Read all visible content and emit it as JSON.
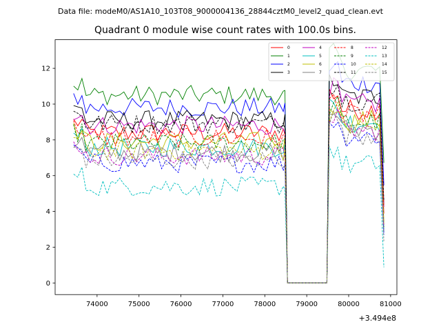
{
  "chart_data": {
    "type": "line",
    "suptitle": "Data file: modeM0/AS1A10_103T08_9000004136_28844cztM0_level2_quad_clean.evt",
    "title": "Quadrant 0 module wise count rates with 100.0s bins.",
    "xlabel": "",
    "ylabel": "",
    "offset_text": "+3.494e8",
    "x_offset": 349400000,
    "xlim": [
      73000,
      81150
    ],
    "ylim": [
      -0.65,
      13.6
    ],
    "xticks": [
      74000,
      75000,
      76000,
      77000,
      78000,
      79000,
      80000,
      81000
    ],
    "yticks": [
      0,
      2,
      4,
      6,
      8,
      10,
      12
    ],
    "legend_position": "top-right",
    "legend_columns": 4,
    "x_start": 73440,
    "bin_size": 100,
    "gap": {
      "down_from": 78540,
      "up_to": 79480
    },
    "x_end": 80840,
    "series": [
      {
        "name": "0",
        "color": "#ff0000",
        "dash": "solid",
        "pre_level": 8.4,
        "post_level": 9.7
      },
      {
        "name": "1",
        "color": "#008000",
        "dash": "solid",
        "pre_level": 10.5,
        "post_level": 11.9
      },
      {
        "name": "2",
        "color": "#0000ff",
        "dash": "solid",
        "pre_level": 9.8,
        "post_level": 11.2
      },
      {
        "name": "3",
        "color": "#000000",
        "dash": "solid",
        "pre_level": 9.1,
        "post_level": 10.4
      },
      {
        "name": "4",
        "color": "#bf00bf",
        "dash": "solid",
        "pre_level": 8.8,
        "post_level": 10.0
      },
      {
        "name": "5",
        "color": "#00bfbf",
        "dash": "solid",
        "pre_level": 7.6,
        "post_level": 9.0
      },
      {
        "name": "6",
        "color": "#bfbf00",
        "dash": "solid",
        "pre_level": 7.9,
        "post_level": 9.1
      },
      {
        "name": "7",
        "color": "#808080",
        "dash": "solid",
        "pre_level": 7.3,
        "post_level": 8.6
      },
      {
        "name": "8",
        "color": "#ff0000",
        "dash": "dashed",
        "pre_level": 8.1,
        "post_level": 9.4
      },
      {
        "name": "9",
        "color": "#008000",
        "dash": "dashed",
        "pre_level": 7.8,
        "post_level": 9.0
      },
      {
        "name": "10",
        "color": "#0000ff",
        "dash": "dashed",
        "pre_level": 6.7,
        "post_level": 8.2
      },
      {
        "name": "11",
        "color": "#000000",
        "dash": "dashed",
        "pre_level": 8.9,
        "post_level": 10.2
      },
      {
        "name": "12",
        "color": "#bf00bf",
        "dash": "dashed",
        "pre_level": 7.1,
        "post_level": 8.5
      },
      {
        "name": "13",
        "color": "#00bfbf",
        "dash": "dashed",
        "pre_level": 5.4,
        "post_level": 6.6
      },
      {
        "name": "14",
        "color": "#bfbf00",
        "dash": "dashed",
        "pre_level": 7.4,
        "post_level": 8.7
      },
      {
        "name": "15",
        "color": "#808080",
        "dash": "dashed",
        "pre_level": 6.9,
        "post_level": 8.3
      }
    ]
  }
}
